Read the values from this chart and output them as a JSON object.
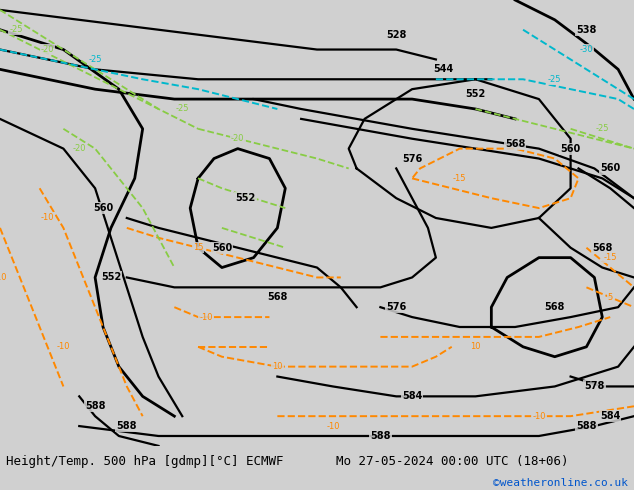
{
  "title_left": "Height/Temp. 500 hPa [gdmp][°C] ECMWF",
  "title_right": "Mo 27-05-2024 00:00 UTC (18+06)",
  "credit": "©weatheronline.co.uk",
  "bg_color": "#d0d0d0",
  "sea_color": "#d0d0d0",
  "land_gray": "#aaaaaa",
  "green_light": "#b8e4b8",
  "title_fontsize": 9,
  "credit_color": "#0055cc",
  "fig_width": 6.34,
  "fig_height": 4.9,
  "dpi": 100,
  "extent": [
    -30,
    50,
    30,
    75
  ]
}
